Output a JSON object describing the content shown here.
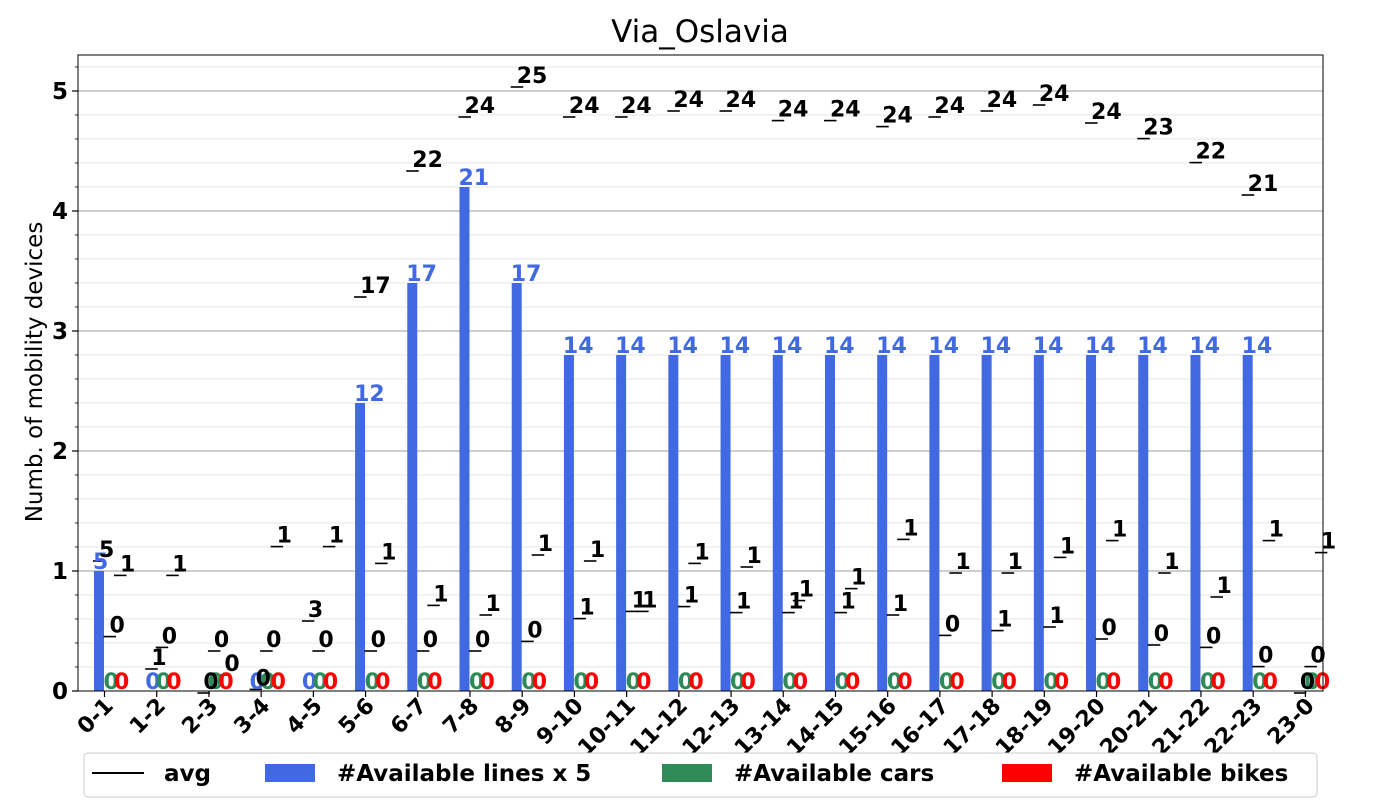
{
  "chart_data": {
    "type": "bar",
    "title": "Via_Oslavia",
    "xlabel": "",
    "ylabel": "Numb. of mobility devices",
    "ylim": [
      0,
      5.3
    ],
    "yticks": [
      "0",
      "1",
      "2",
      "3",
      "4",
      "5"
    ],
    "grid": "y-major-and-minor",
    "legend_placement": "bottom",
    "categories": [
      "0-1",
      "1-2",
      "2-3",
      "3-4",
      "4-5",
      "5-6",
      "6-7",
      "7-8",
      "8-9",
      "9-10",
      "10-11",
      "11-12",
      "12-13",
      "13-14",
      "14-15",
      "15-16",
      "16-17",
      "17-18",
      "18-19",
      "19-20",
      "20-21",
      "21-22",
      "22-23",
      "23-0"
    ],
    "series": [
      {
        "name": "#Available lines x 5",
        "kind": "bar",
        "color": "#4169e1",
        "values": [
          1.0,
          0,
          0,
          0,
          0,
          2.4,
          3.4,
          4.2,
          3.4,
          2.8,
          2.8,
          2.8,
          2.8,
          2.8,
          2.8,
          2.8,
          2.8,
          2.8,
          2.8,
          2.8,
          2.8,
          2.8,
          2.8,
          0
        ],
        "labels": [
          "5",
          "0",
          "",
          "0",
          "0",
          "12",
          "17",
          "21",
          "17",
          "14",
          "14",
          "14",
          "14",
          "14",
          "14",
          "14",
          "14",
          "14",
          "14",
          "14",
          "14",
          "14",
          "14",
          ""
        ]
      },
      {
        "name": "#Available cars",
        "kind": "bar",
        "color": "#2e8b57",
        "values": [
          0,
          0,
          0,
          0,
          0,
          0,
          0,
          0,
          0,
          0,
          0,
          0,
          0,
          0,
          0,
          0,
          0,
          0,
          0,
          0,
          0,
          0,
          0,
          0
        ],
        "labels": [
          "0",
          "0",
          "0",
          "0",
          "0",
          "0",
          "0",
          "0",
          "0",
          "0",
          "0",
          "0",
          "0",
          "0",
          "0",
          "0",
          "0",
          "0",
          "0",
          "0",
          "0",
          "0",
          "0",
          "0"
        ]
      },
      {
        "name": "#Available bikes",
        "kind": "bar",
        "color": "#ff0000",
        "values": [
          0,
          0,
          0,
          0,
          0,
          0,
          0,
          0,
          0,
          0,
          0,
          0,
          0,
          0,
          0,
          0,
          0,
          0,
          0,
          0,
          0,
          0,
          0,
          0
        ],
        "labels": [
          "0",
          "0",
          "0",
          "0",
          "0",
          "0",
          "0",
          "0",
          "0",
          "0",
          "0",
          "0",
          "0",
          "0",
          "0",
          "0",
          "0",
          "0",
          "0",
          "0",
          "0",
          "0",
          "0",
          "0"
        ]
      },
      {
        "name": "avg",
        "kind": "avg-line",
        "color": "#000000",
        "note_slot": "lines",
        "values": [
          1.1,
          0.2,
          0.0,
          0.03,
          0.6,
          3.3,
          4.35,
          4.8,
          5.05,
          4.8,
          4.8,
          4.85,
          4.85,
          4.77,
          4.77,
          4.72,
          4.8,
          4.85,
          4.9,
          4.75,
          4.62,
          4.42,
          4.15,
          0.0
        ],
        "labels": [
          "5",
          "1",
          "0",
          "0",
          "3",
          "17",
          "22",
          "24",
          "25",
          "24",
          "24",
          "24",
          "24",
          "24",
          "24",
          "24",
          "24",
          "24",
          "24",
          "24",
          "23",
          "22",
          "21",
          "0"
        ]
      },
      {
        "name": "avg",
        "kind": "avg-line",
        "color": "#000000",
        "note_slot": "cars",
        "values": [
          0.47,
          0.38,
          0.35,
          0.35,
          0.35,
          0.35,
          0.35,
          0.35,
          0.43,
          0.62,
          0.68,
          0.72,
          0.67,
          0.67,
          0.67,
          0.65,
          0.48,
          0.52,
          0.55,
          0.45,
          0.4,
          0.38,
          0.22,
          0.22
        ],
        "labels": [
          "0",
          "0",
          "0",
          "0",
          "0",
          "0",
          "0",
          "0",
          "0",
          "1",
          "1",
          "1",
          "1",
          "1",
          "1",
          "1",
          "0",
          "1",
          "1",
          "0",
          "0",
          "0",
          "0",
          "0"
        ]
      },
      {
        "name": "avg",
        "kind": "avg-line",
        "color": "#000000",
        "note_slot": "bikes",
        "values": [
          0.98,
          0.98,
          0.15,
          1.22,
          1.22,
          1.08,
          0.73,
          0.65,
          1.15,
          1.1,
          0.68,
          1.08,
          1.05,
          0.77,
          0.87,
          1.28,
          1.0,
          1.0,
          1.13,
          1.27,
          1.0,
          0.8,
          1.27,
          1.17
        ],
        "labels": [
          "1",
          "1",
          "0",
          "1",
          "1",
          "1",
          "1",
          "1",
          "1",
          "1",
          "1",
          "1",
          "1",
          "1",
          "1",
          "1",
          "1",
          "1",
          "1",
          "1",
          "1",
          "1",
          "1",
          "1"
        ]
      }
    ],
    "legend": [
      {
        "label": "avg",
        "kind": "line",
        "color": "#000000"
      },
      {
        "label": "#Available lines x 5",
        "kind": "patch",
        "color": "#4169e1"
      },
      {
        "label": "#Available cars",
        "kind": "patch",
        "color": "#2e8b57"
      },
      {
        "label": "#Available bikes",
        "kind": "patch",
        "color": "#ff0000"
      }
    ]
  }
}
